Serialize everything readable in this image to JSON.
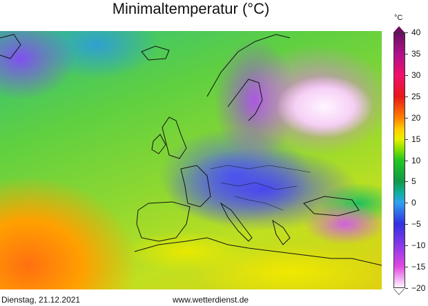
{
  "title": "Minimaltemperatur (°C)",
  "colorbar": {
    "unit": "°C",
    "ticks": [
      "40",
      "35",
      "30",
      "25",
      "20",
      "15",
      "10",
      "5",
      "0",
      "−5",
      "−10",
      "−15",
      "−20"
    ],
    "min": -20,
    "max": 40,
    "colors": {
      "40": "#6a1060",
      "25": "#e81818",
      "20": "#ff8000",
      "15": "#e8f000",
      "10": "#20c820",
      "0": "#30a0f0",
      "-5": "#3030e0",
      "-10": "#8838e8",
      "-15": "#e048e0",
      "-20": "#fff4ff"
    }
  },
  "footer": {
    "date": "Dienstag, 21.12.2021",
    "website": "www.wetterdienst.de"
  }
}
